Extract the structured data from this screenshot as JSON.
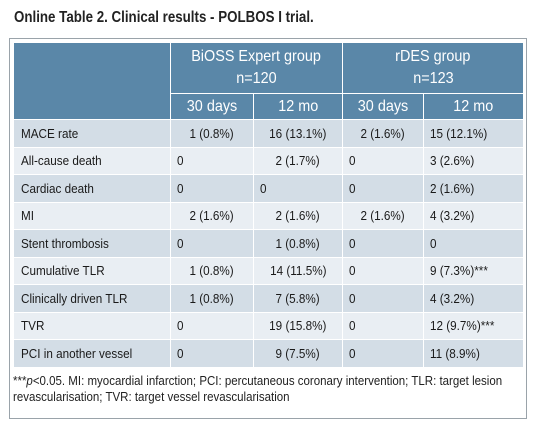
{
  "title": "Online Table 2. Clinical results - POLBOS I trial.",
  "groups": [
    {
      "name": "BiOSS Expert group",
      "n": "n=120"
    },
    {
      "name": "rDES group",
      "n": "n=123"
    }
  ],
  "subheaders": [
    "30 days",
    "12 mo",
    "30 days",
    "12 mo"
  ],
  "rows": [
    {
      "label": "MACE rate",
      "values": [
        "1 (0.8%)",
        "16 (13.1%)",
        "2 (1.6%)",
        "15 (12.1%)"
      ]
    },
    {
      "label": "All-cause death",
      "values": [
        "0",
        "2 (1.7%)",
        "0",
        "3 (2.6%)"
      ]
    },
    {
      "label": "Cardiac death",
      "values": [
        "0",
        "0",
        "0",
        "2 (1.6%)"
      ]
    },
    {
      "label": "MI",
      "values": [
        "2 (1.6%)",
        "2 (1.6%)",
        "2 (1.6%)",
        "4 (3.2%)"
      ]
    },
    {
      "label": "Stent thrombosis",
      "values": [
        "0",
        "1 (0.8%)",
        "0",
        "0"
      ]
    },
    {
      "label": "Cumulative TLR",
      "values": [
        "1 (0.8%)",
        "14 (11.5%)",
        "0",
        "9 (7.3%)***"
      ]
    },
    {
      "label": "Clinically driven TLR",
      "values": [
        "1 (0.8%)",
        "7 (5.8%)",
        "0",
        "4 (3.2%)"
      ]
    },
    {
      "label": "TVR",
      "values": [
        "0",
        "19 (15.8%)",
        "0",
        "12 (9.7%)***"
      ]
    },
    {
      "label": "PCI in another vessel",
      "values": [
        "0",
        "9 (7.5%)",
        "0",
        "11 (8.9%)"
      ]
    }
  ],
  "footnote": {
    "stars": "***",
    "p": "p",
    "rest": "<0.05. MI: myocardial infarction; PCI: percutaneous coronary intervention; TLR: target lesion revascularisation; TVR: target vessel revascularisation"
  }
}
